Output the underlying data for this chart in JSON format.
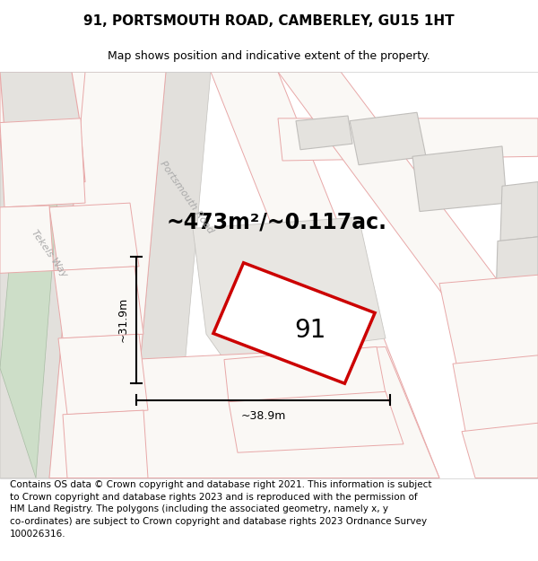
{
  "title": "91, PORTSMOUTH ROAD, CAMBERLEY, GU15 1HT",
  "subtitle": "Map shows position and indicative extent of the property.",
  "footer": "Contains OS data © Crown copyright and database right 2021. This information is subject\nto Crown copyright and database rights 2023 and is reproduced with the permission of\nHM Land Registry. The polygons (including the associated geometry, namely x, y\nco-ordinates) are subject to Crown copyright and database rights 2023 Ordnance Survey\n100026316.",
  "area_label": "~473m²/~0.117ac.",
  "width_label": "~38.9m",
  "height_label": "~31.9m",
  "plot_number": "91",
  "map_bg": "#f5f4f1",
  "road_gray_fill": "#e0dedb",
  "road_gray_stroke": "#b8b6b3",
  "building_fill": "#e4e2de",
  "building_stroke": "#c0bebb",
  "green_fill": "#cddec8",
  "green_stroke": "#a8bca4",
  "pink_stroke": "#e8a8a8",
  "pink_fill": "#faf8f5",
  "highlight_fill": "#ffffff",
  "highlight_stroke": "#cc0000",
  "dim_color": "#000000",
  "road_label_color": "#aaaaaa",
  "title_fontsize": 11,
  "subtitle_fontsize": 9,
  "footer_fontsize": 7.5,
  "area_fontsize": 17,
  "number_fontsize": 20,
  "dim_fontsize": 9,
  "road_label_fontsize": 8
}
